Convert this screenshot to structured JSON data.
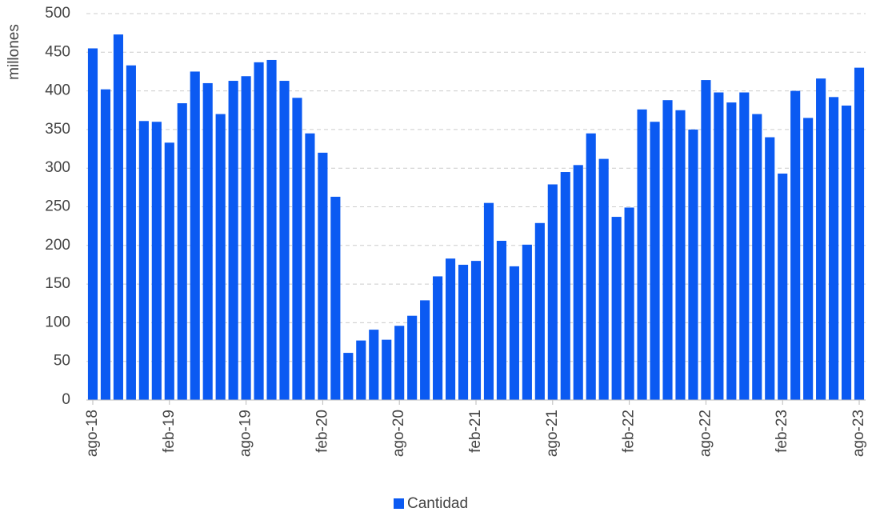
{
  "chart_data": {
    "type": "bar",
    "y_label": "millones",
    "categories": [
      "ago-18",
      null,
      null,
      null,
      null,
      null,
      "feb-19",
      null,
      null,
      null,
      null,
      null,
      "ago-19",
      null,
      null,
      null,
      null,
      null,
      "feb-20",
      null,
      null,
      null,
      null,
      null,
      "ago-20",
      null,
      null,
      null,
      null,
      null,
      "feb-21",
      null,
      null,
      null,
      null,
      null,
      "ago-21",
      null,
      null,
      null,
      null,
      null,
      "feb-22",
      null,
      null,
      null,
      null,
      null,
      "ago-22",
      null,
      null,
      null,
      null,
      null,
      "feb-23",
      null,
      null,
      null,
      null,
      null,
      "ago-23"
    ],
    "series": [
      {
        "name": "Cantidad",
        "color": "#0b5af2",
        "values": [
          455,
          402,
          473,
          433,
          361,
          360,
          333,
          384,
          425,
          410,
          370,
          413,
          419,
          437,
          440,
          413,
          391,
          345,
          320,
          263,
          61,
          77,
          91,
          78,
          96,
          109,
          129,
          160,
          183,
          175,
          180,
          255,
          206,
          173,
          201,
          229,
          279,
          295,
          304,
          345,
          312,
          237,
          249,
          376,
          360,
          388,
          375,
          350,
          414,
          398,
          385,
          398,
          370,
          340,
          293,
          400,
          365,
          416,
          392,
          381,
          430
        ]
      }
    ],
    "ylim": [
      0,
      500
    ],
    "yticks": [
      0,
      50,
      100,
      150,
      200,
      250,
      300,
      350,
      400,
      450,
      500
    ],
    "grid": true,
    "legend": "bottom"
  }
}
